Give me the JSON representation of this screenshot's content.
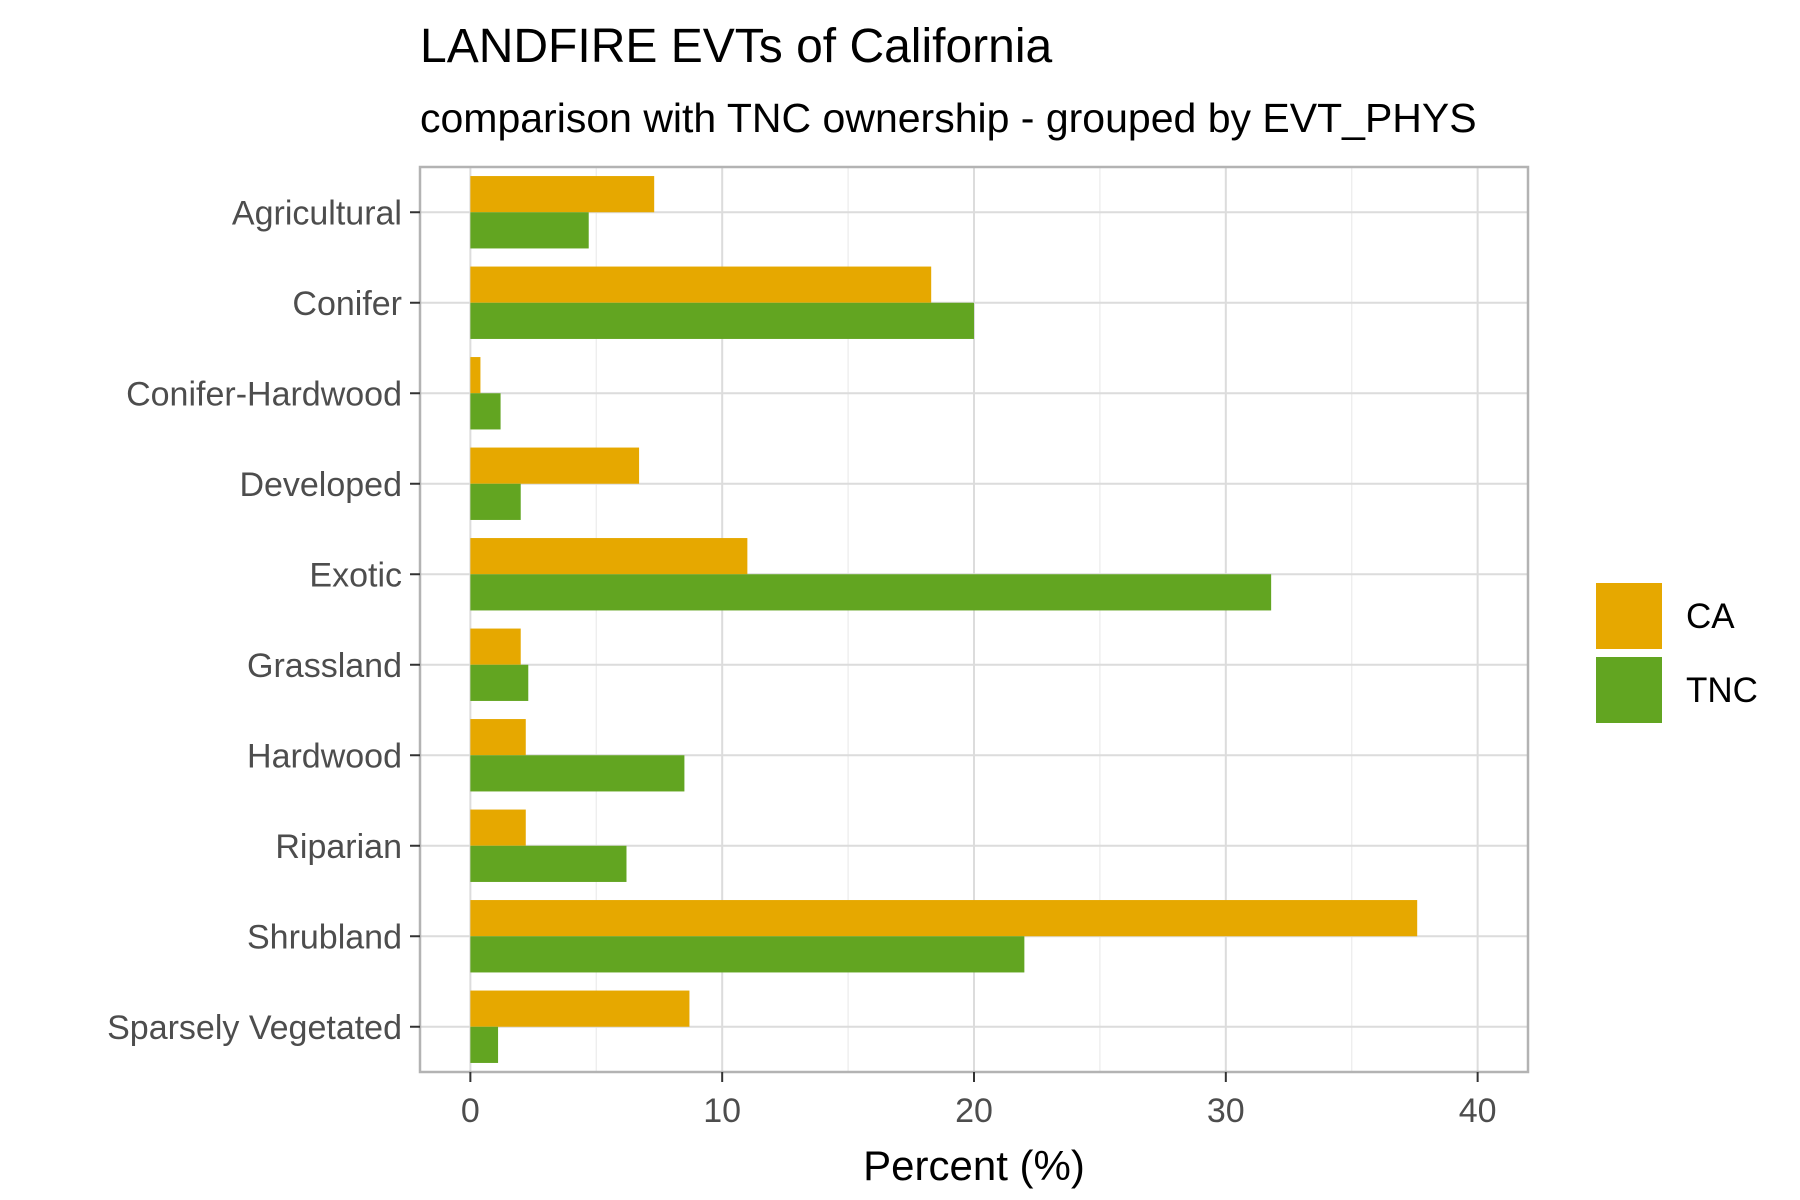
{
  "chart_data": {
    "type": "bar",
    "orientation": "horizontal",
    "title": "LANDFIRE EVTs of California",
    "subtitle": "comparison with TNC ownership - grouped by EVT_PHYS",
    "xlabel": "Percent (%)",
    "ylabel": "",
    "xlim": [
      -2,
      42
    ],
    "xticks": [
      0,
      10,
      20,
      30,
      40
    ],
    "xtick_labels": [
      "0",
      "10",
      "20",
      "30",
      "40"
    ],
    "grid": true,
    "legend_position": "right",
    "categories": [
      "Agricultural",
      "Conifer",
      "Conifer-Hardwood",
      "Developed",
      "Exotic",
      "Grassland",
      "Hardwood",
      "Riparian",
      "Shrubland",
      "Sparsely Vegetated"
    ],
    "series": [
      {
        "name": "CA",
        "color": "#E6A800",
        "values": [
          7.3,
          18.3,
          0.4,
          6.7,
          11.0,
          2.0,
          2.2,
          2.2,
          37.6,
          8.7
        ]
      },
      {
        "name": "TNC",
        "color": "#62A521",
        "values": [
          4.7,
          20.0,
          1.2,
          2.0,
          31.8,
          2.3,
          8.5,
          6.2,
          22.0,
          1.1
        ]
      }
    ]
  }
}
